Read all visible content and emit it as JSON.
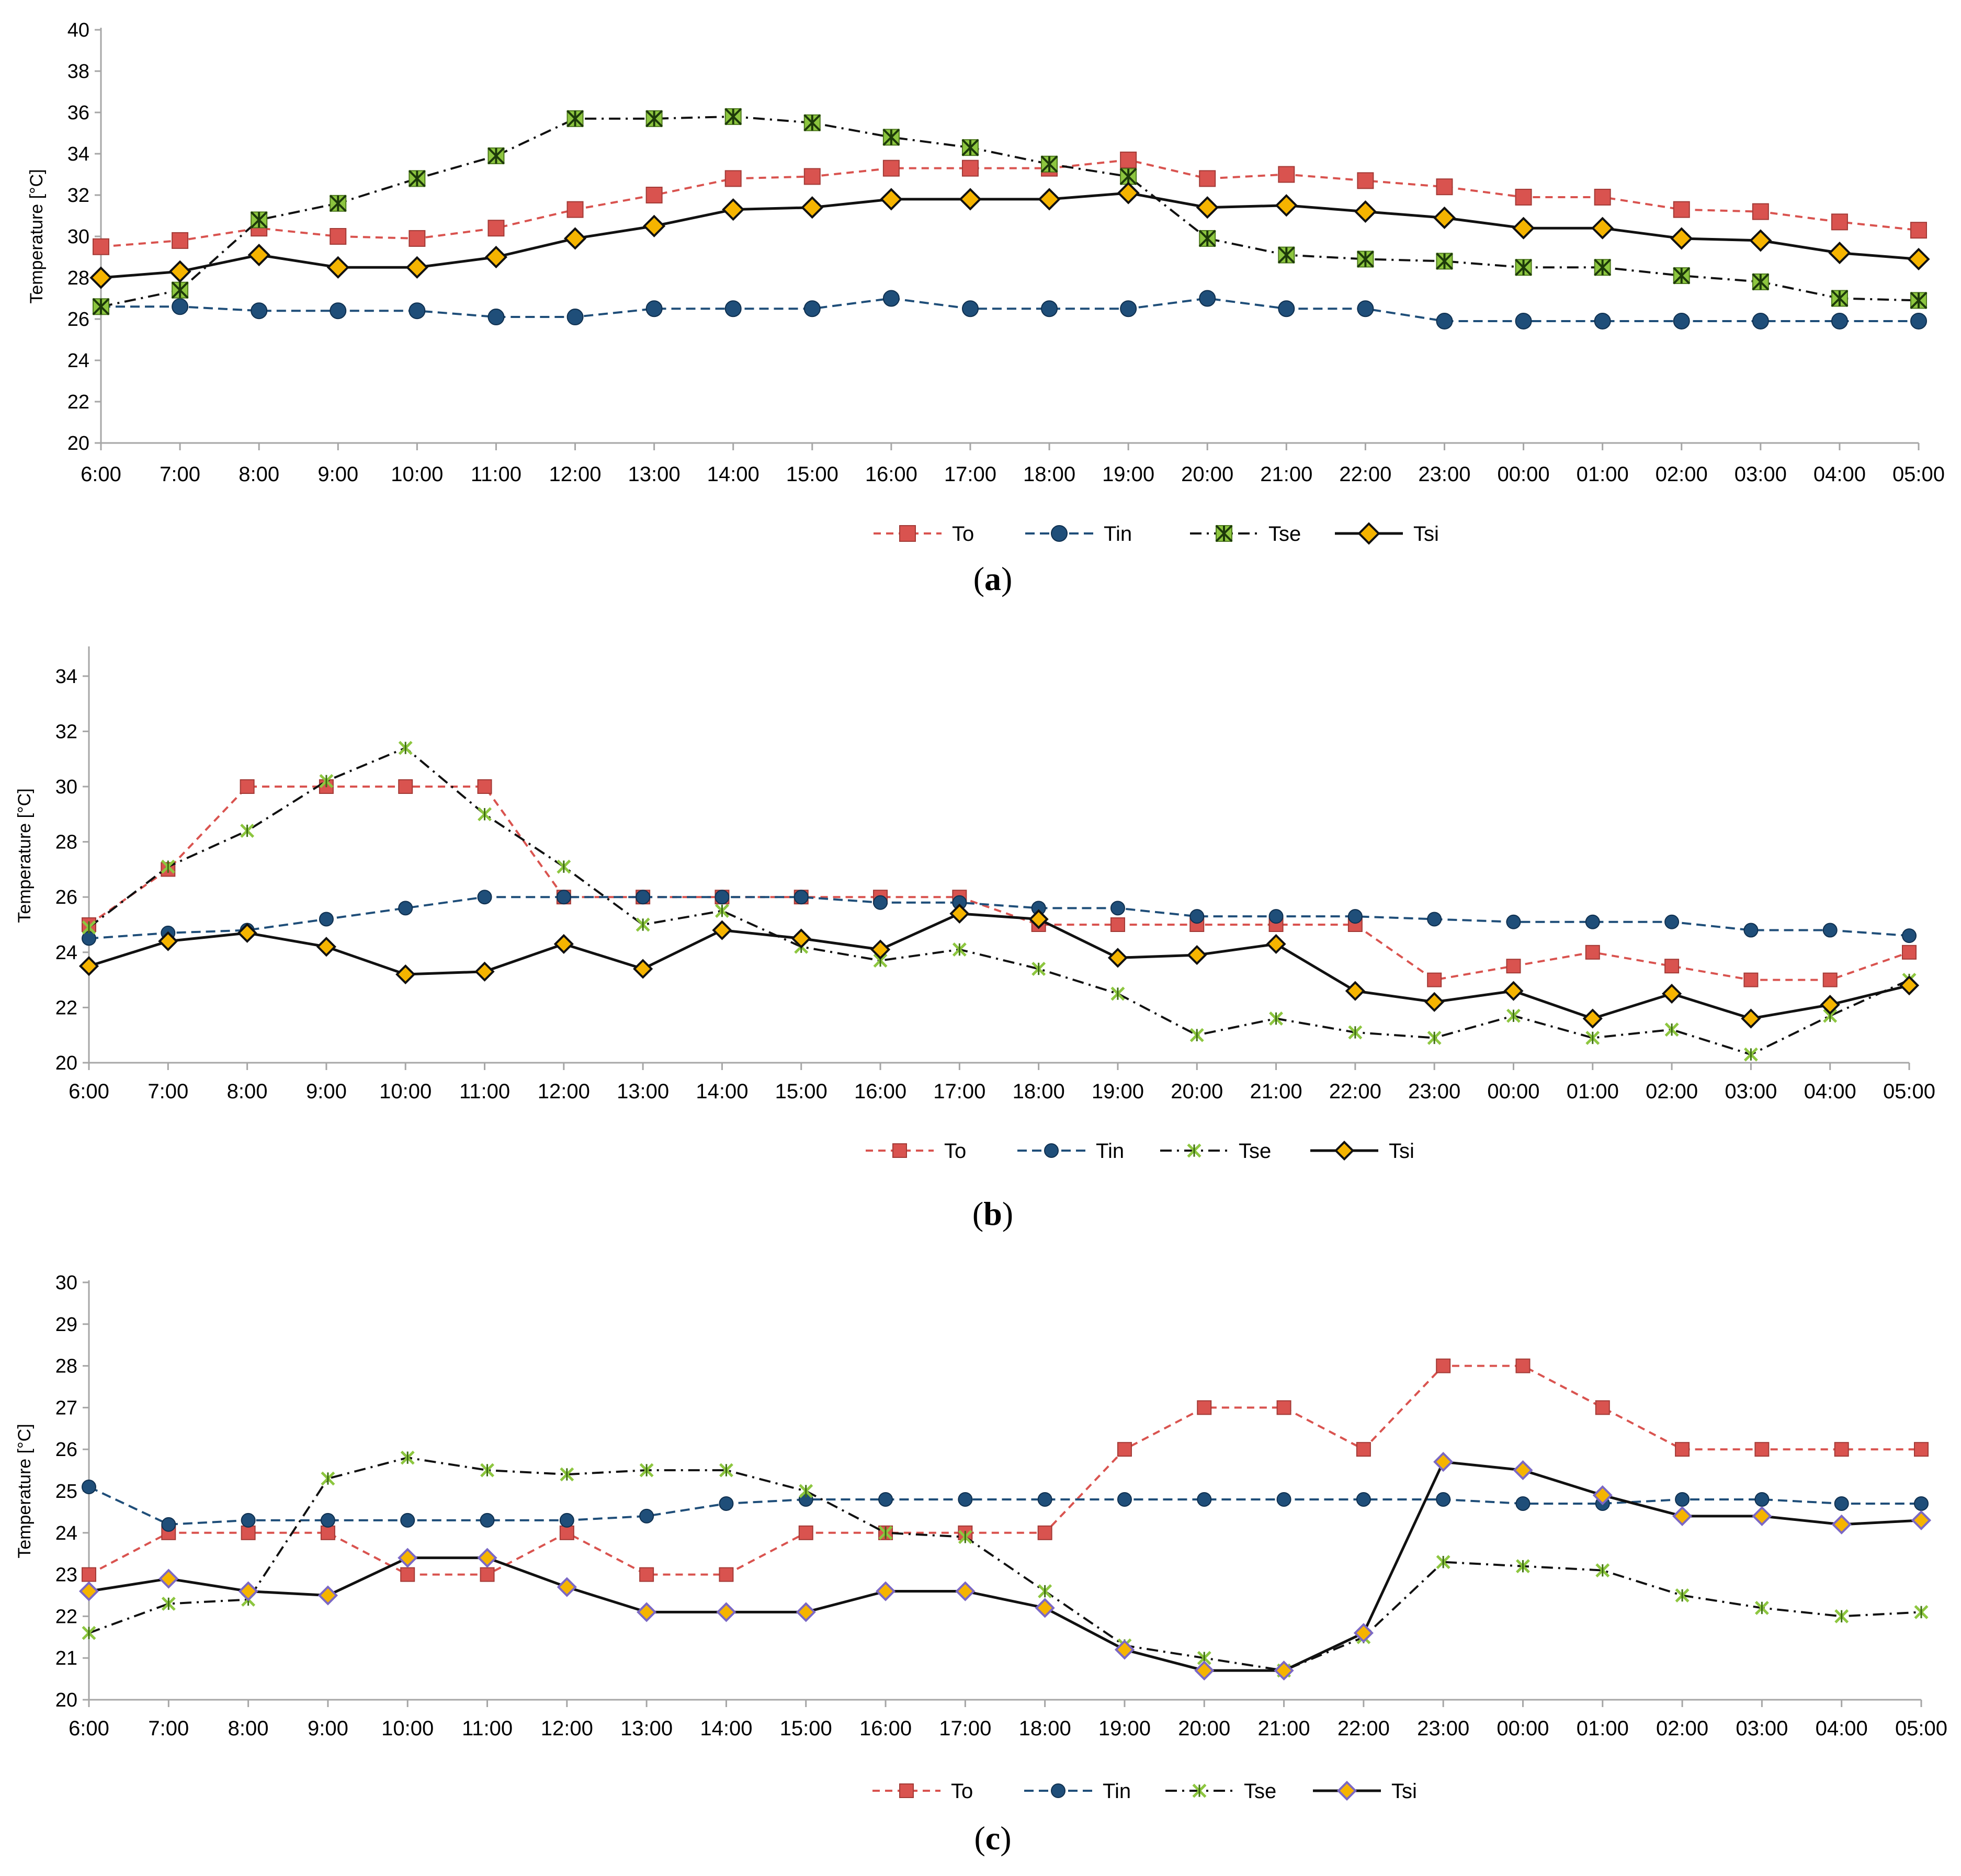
{
  "colors": {
    "To": "#d9534f",
    "Tin": "#1f4e79",
    "Tse": "#8dc63f",
    "Tse_line": "#111111",
    "Tsi": "#f5b400",
    "Tsi_line": "#111111",
    "Tsi_border_c": "#7b68c4",
    "axis": "#a6a6a6"
  },
  "chart_data": [
    {
      "id": "a",
      "panel_label": "a",
      "type": "line",
      "ylabel": "Temperature [°C]",
      "xlabel": "",
      "ylim": [
        20,
        40
      ],
      "ytick_step": 2,
      "grid": false,
      "legend_position": "bottom-center",
      "categories": [
        "6:00",
        "7:00",
        "8:00",
        "9:00",
        "10:00",
        "11:00",
        "12:00",
        "13:00",
        "14:00",
        "15:00",
        "16:00",
        "17:00",
        "18:00",
        "19:00",
        "20:00",
        "21:00",
        "22:00",
        "23:00",
        "00:00",
        "01:00",
        "02:00",
        "03:00",
        "04:00",
        "05:00"
      ],
      "series": [
        {
          "name": "To",
          "values": [
            29.5,
            29.8,
            30.4,
            30.0,
            29.9,
            30.4,
            31.3,
            32.0,
            32.8,
            32.9,
            33.3,
            33.3,
            33.3,
            33.7,
            32.8,
            33.0,
            32.7,
            32.4,
            31.9,
            31.9,
            31.3,
            31.2,
            30.7,
            30.3
          ]
        },
        {
          "name": "Tin",
          "values": [
            26.6,
            26.6,
            26.4,
            26.4,
            26.4,
            26.1,
            26.1,
            26.5,
            26.5,
            26.5,
            27.0,
            26.5,
            26.5,
            26.5,
            27.0,
            26.5,
            26.5,
            25.9,
            25.9,
            25.9,
            25.9,
            25.9,
            25.9,
            25.9
          ]
        },
        {
          "name": "Tse",
          "values": [
            26.6,
            27.4,
            30.8,
            31.6,
            32.8,
            33.9,
            35.7,
            35.7,
            35.8,
            35.5,
            34.8,
            34.3,
            33.5,
            32.9,
            29.9,
            29.1,
            28.9,
            28.8,
            28.5,
            28.5,
            28.1,
            27.8,
            27.0,
            26.9
          ]
        },
        {
          "name": "Tsi",
          "values": [
            28.0,
            28.3,
            29.1,
            28.5,
            28.5,
            29.0,
            29.9,
            30.5,
            31.3,
            31.4,
            31.8,
            31.8,
            31.8,
            32.1,
            31.4,
            31.5,
            31.2,
            30.9,
            30.4,
            30.4,
            29.9,
            29.8,
            29.2,
            28.9
          ]
        }
      ]
    },
    {
      "id": "b",
      "panel_label": "b",
      "type": "line",
      "ylabel": "Temperature [°C]",
      "xlabel": "",
      "ylim": [
        20,
        35
      ],
      "yticks": [
        20,
        22,
        24,
        26,
        28,
        30,
        32,
        34
      ],
      "ytick_step": 2,
      "grid": false,
      "legend_position": "bottom-center",
      "categories": [
        "6:00",
        "7:00",
        "8:00",
        "9:00",
        "10:00",
        "11:00",
        "12:00",
        "13:00",
        "14:00",
        "15:00",
        "16:00",
        "17:00",
        "18:00",
        "19:00",
        "20:00",
        "21:00",
        "22:00",
        "23:00",
        "00:00",
        "01:00",
        "02:00",
        "03:00",
        "04:00",
        "05:00"
      ],
      "series": [
        {
          "name": "To",
          "values": [
            25,
            27,
            30,
            30,
            30,
            30,
            26,
            26,
            26,
            26,
            26,
            26,
            25,
            25,
            25,
            25,
            25,
            23,
            23.5,
            24,
            23.5,
            23,
            23,
            24
          ]
        },
        {
          "name": "Tin",
          "values": [
            24.5,
            24.7,
            24.8,
            25.2,
            25.6,
            26.0,
            26.0,
            26.0,
            26.0,
            26.0,
            25.8,
            25.8,
            25.6,
            25.6,
            25.3,
            25.3,
            25.3,
            25.2,
            25.1,
            25.1,
            25.1,
            24.8,
            24.8,
            24.6
          ]
        },
        {
          "name": "Tse",
          "values": [
            24.9,
            27.1,
            28.4,
            30.2,
            31.4,
            29.0,
            27.1,
            25.0,
            25.5,
            24.2,
            23.7,
            24.1,
            23.4,
            22.5,
            21.0,
            21.6,
            21.1,
            20.9,
            21.7,
            20.9,
            21.2,
            20.3,
            21.7,
            23.0
          ]
        },
        {
          "name": "Tsi",
          "values": [
            23.5,
            24.4,
            24.7,
            24.2,
            23.2,
            23.3,
            24.3,
            23.4,
            24.8,
            24.5,
            24.1,
            25.4,
            25.2,
            23.8,
            23.9,
            24.3,
            22.6,
            22.2,
            22.6,
            21.6,
            22.5,
            21.6,
            22.1,
            22.8
          ]
        }
      ]
    },
    {
      "id": "c",
      "panel_label": "c",
      "type": "line",
      "ylabel": "Temperature [°C]",
      "xlabel": "",
      "ylim": [
        20,
        30
      ],
      "ytick_step": 1,
      "grid": false,
      "legend_position": "bottom-center",
      "categories": [
        "6:00",
        "7:00",
        "8:00",
        "9:00",
        "10:00",
        "11:00",
        "12:00",
        "13:00",
        "14:00",
        "15:00",
        "16:00",
        "17:00",
        "18:00",
        "19:00",
        "20:00",
        "21:00",
        "22:00",
        "23:00",
        "00:00",
        "01:00",
        "02:00",
        "03:00",
        "04:00",
        "05:00"
      ],
      "series": [
        {
          "name": "To",
          "values": [
            23,
            24,
            24,
            24,
            23,
            23,
            24,
            23,
            23,
            24,
            24,
            24,
            24,
            26,
            27,
            27,
            26,
            28,
            28,
            27,
            26,
            26,
            26,
            26
          ]
        },
        {
          "name": "Tin",
          "values": [
            25.1,
            24.2,
            24.3,
            24.3,
            24.3,
            24.3,
            24.3,
            24.4,
            24.7,
            24.8,
            24.8,
            24.8,
            24.8,
            24.8,
            24.8,
            24.8,
            24.8,
            24.8,
            24.7,
            24.7,
            24.8,
            24.8,
            24.7,
            24.7
          ]
        },
        {
          "name": "Tse",
          "values": [
            21.6,
            22.3,
            22.4,
            25.3,
            25.8,
            25.5,
            25.4,
            25.5,
            25.5,
            25.0,
            24.0,
            23.9,
            22.6,
            21.3,
            21.0,
            20.7,
            21.5,
            23.3,
            23.2,
            23.1,
            22.5,
            22.2,
            22.0,
            22.1
          ]
        },
        {
          "name": "Tsi",
          "values": [
            22.6,
            22.9,
            22.6,
            22.5,
            23.4,
            23.4,
            22.7,
            22.1,
            22.1,
            22.1,
            22.6,
            22.6,
            22.2,
            21.2,
            20.7,
            20.7,
            21.6,
            25.7,
            25.5,
            24.9,
            24.4,
            24.4,
            24.2,
            24.3
          ]
        }
      ]
    }
  ]
}
